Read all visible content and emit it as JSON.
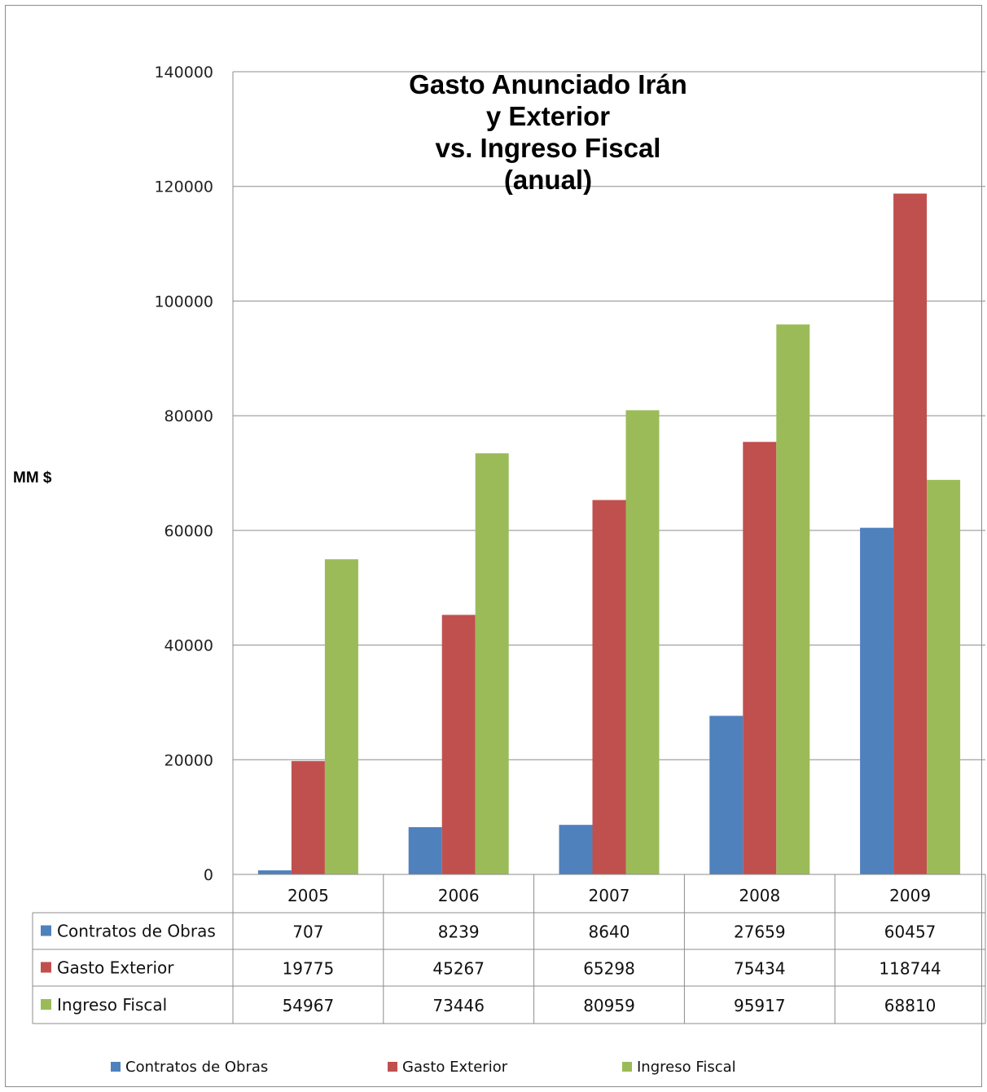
{
  "chart_data": {
    "type": "bar",
    "title_lines": [
      "Gasto Anunciado Irán",
      "y Exterior",
      "vs. Ingreso Fiscal",
      "(anual)"
    ],
    "xlabel": "",
    "ylabel": "MM $",
    "ylim": [
      0,
      140000
    ],
    "yticks": [
      0,
      20000,
      40000,
      60000,
      80000,
      100000,
      120000,
      140000
    ],
    "categories": [
      "2005",
      "2006",
      "2007",
      "2008",
      "2009"
    ],
    "series": [
      {
        "name": "Contratos de Obras",
        "color": "#4f81bd",
        "values": [
          707,
          8239,
          8640,
          27659,
          60457
        ]
      },
      {
        "name": "Gasto Exterior",
        "color": "#c0504d",
        "values": [
          19775,
          45267,
          65298,
          75434,
          118744
        ]
      },
      {
        "name": "Ingreso Fiscal",
        "color": "#9bbb59",
        "values": [
          54967,
          73446,
          80959,
          95917,
          68810
        ]
      }
    ],
    "grid": true,
    "data_table": true,
    "legend_position": "bottom"
  }
}
